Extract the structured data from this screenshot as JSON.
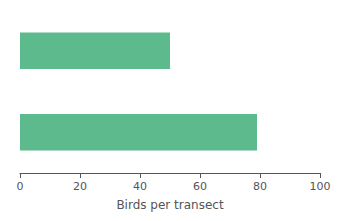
{
  "chart_data": {
    "type": "bar",
    "orientation": "horizontal",
    "categories": [
      null,
      null
    ],
    "values": [
      50,
      79
    ],
    "color": "#5dba8d",
    "xlabel": "Birds per transect",
    "xlim": [
      0,
      100
    ],
    "xticks": [
      0,
      20,
      40,
      60,
      80,
      100
    ],
    "grid": false,
    "tick_labels": "x"
  }
}
